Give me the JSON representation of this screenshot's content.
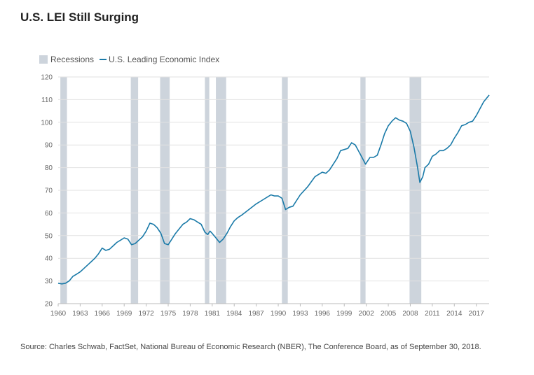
{
  "title": "U.S. LEI Still Surging",
  "source": "Source: Charles Schwab, FactSet, National Bureau of Economic Research (NBER), The Conference Board, as of September 30, 2018.",
  "colors": {
    "line": "#1a7aa8",
    "recession": "#cdd4dc",
    "grid": "#e2e2e2",
    "axis": "#bbbbbb"
  },
  "chart_data": {
    "type": "line",
    "title": "U.S. LEI Still Surging",
    "xlabel": "",
    "ylabel": "",
    "xlim": [
      1960,
      2018.75
    ],
    "ylim": [
      20,
      120
    ],
    "yticks": [
      20,
      30,
      40,
      50,
      60,
      70,
      80,
      90,
      100,
      110,
      120
    ],
    "xticks": [
      1960,
      1963,
      1966,
      1969,
      1972,
      1975,
      1978,
      1981,
      1984,
      1987,
      1990,
      1993,
      1996,
      1999,
      2002,
      2005,
      2008,
      2011,
      2014,
      2017
    ],
    "grid": true,
    "legend": [
      {
        "name": "Recessions",
        "kind": "band"
      },
      {
        "name": "U.S. Leading Economic Index",
        "kind": "line"
      }
    ],
    "legend_position": "top-left",
    "recessions": [
      [
        1960.3,
        1961.2
      ],
      [
        1969.9,
        1970.9
      ],
      [
        1973.9,
        1975.2
      ],
      [
        1980.0,
        1980.6
      ],
      [
        1981.5,
        1982.9
      ],
      [
        1990.5,
        1991.3
      ],
      [
        2001.2,
        2001.9
      ],
      [
        2007.9,
        2009.5
      ]
    ],
    "series": [
      {
        "name": "U.S. Leading Economic Index",
        "x": [
          1960.0,
          1960.5,
          1961.0,
          1961.5,
          1962.0,
          1962.5,
          1963.0,
          1963.5,
          1964.0,
          1964.5,
          1965.0,
          1965.5,
          1966.0,
          1966.5,
          1967.0,
          1967.5,
          1968.0,
          1968.5,
          1969.0,
          1969.5,
          1970.0,
          1970.5,
          1971.0,
          1971.5,
          1972.0,
          1972.5,
          1973.0,
          1973.5,
          1974.0,
          1974.5,
          1975.0,
          1975.3,
          1975.7,
          1976.0,
          1976.5,
          1977.0,
          1977.5,
          1978.0,
          1978.5,
          1979.0,
          1979.5,
          1980.0,
          1980.4,
          1980.7,
          1981.0,
          1981.5,
          1982.0,
          1982.5,
          1983.0,
          1983.5,
          1984.0,
          1984.5,
          1985.0,
          1986.0,
          1987.0,
          1988.0,
          1989.0,
          1989.5,
          1990.0,
          1990.5,
          1991.0,
          1991.5,
          1992.0,
          1993.0,
          1994.0,
          1995.0,
          1996.0,
          1996.5,
          1997.0,
          1998.0,
          1998.5,
          1999.0,
          1999.5,
          2000.0,
          2000.5,
          2001.0,
          2001.5,
          2001.9,
          2002.5,
          2003.0,
          2003.5,
          2004.0,
          2004.5,
          2005.0,
          2005.5,
          2006.0,
          2006.5,
          2007.0,
          2007.5,
          2008.0,
          2008.5,
          2009.0,
          2009.3,
          2009.7,
          2010.0,
          2010.5,
          2011.0,
          2011.5,
          2012.0,
          2012.5,
          2013.0,
          2013.5,
          2014.0,
          2014.5,
          2015.0,
          2015.5,
          2016.0,
          2016.5,
          2017.0,
          2017.5,
          2018.0,
          2018.75
        ],
        "values": [
          29,
          28.7,
          29,
          30,
          32,
          33,
          34,
          35.5,
          37,
          38.5,
          40,
          42,
          44.5,
          43.5,
          44,
          45.5,
          47,
          48,
          49,
          48.5,
          46,
          46.5,
          48,
          49.5,
          52,
          55.5,
          55,
          53.5,
          51,
          46.5,
          46,
          47.5,
          49.5,
          51,
          53,
          55,
          56,
          57.5,
          57,
          56,
          55,
          51.5,
          50.5,
          52,
          51,
          49,
          47,
          48.5,
          51,
          54,
          56.5,
          58,
          59,
          61.5,
          64,
          66,
          68,
          67.5,
          67.5,
          66.5,
          61.5,
          62.5,
          63,
          68,
          71.5,
          76,
          78,
          77.5,
          79,
          84,
          87.5,
          88,
          88.5,
          91,
          90,
          87,
          84,
          81.5,
          84.5,
          84.5,
          85.5,
          90,
          95,
          98.5,
          100.5,
          102,
          101,
          100.5,
          99.5,
          96,
          89,
          80,
          73.5,
          76,
          80,
          81.5,
          85,
          86,
          87.5,
          87.5,
          88.5,
          90,
          93,
          95.5,
          98.5,
          99,
          100,
          100.5,
          103,
          106,
          109,
          112
        ]
      }
    ]
  }
}
